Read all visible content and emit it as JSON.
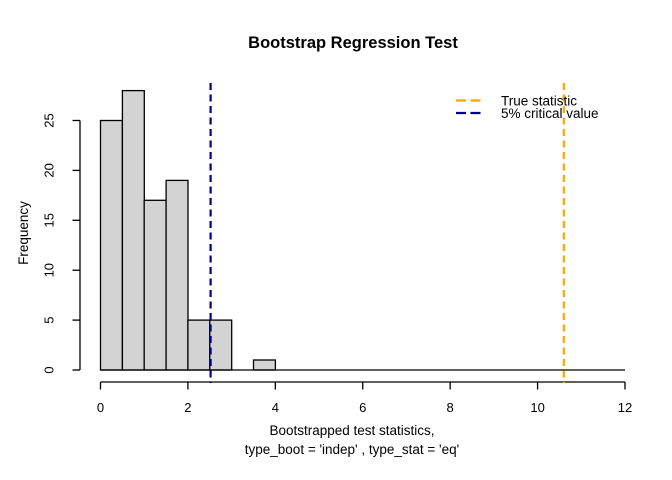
{
  "figure": {
    "background": "#ffffff",
    "text_color": "#000000"
  },
  "chart_data": {
    "type": "bar",
    "subtype": "histogram",
    "title": "Bootstrap Regression Test",
    "xlabel_line1": "Bootstrapped test statistics,",
    "xlabel_line2": "type_boot = 'indep' , type_stat = 'eq'",
    "ylabel": "Frequency",
    "xlim": [
      0,
      12
    ],
    "ylim": [
      0,
      28
    ],
    "x_ticks": [
      0,
      2,
      4,
      6,
      8,
      10,
      12
    ],
    "y_ticks": [
      0,
      5,
      10,
      15,
      20,
      25
    ],
    "grid": false,
    "bin_width": 0.5,
    "bin_edges": [
      0,
      0.5,
      1,
      1.5,
      2,
      2.5,
      3,
      3.5,
      4
    ],
    "counts": [
      25,
      28,
      17,
      19,
      5,
      5,
      0,
      1
    ],
    "bar_fill": "#d3d3d3",
    "bar_stroke": "#000000",
    "vlines": [
      {
        "id": "true-statistic",
        "x": 10.6,
        "color": "#ffa500",
        "style": "dashed",
        "label": "True statistic"
      },
      {
        "id": "critical-value-5pct",
        "x": 2.52,
        "color": "#00008b",
        "style": "dashed",
        "label": "5% critical value"
      }
    ],
    "legend": {
      "position": "top-right",
      "border": false,
      "entries": [
        {
          "label": "True statistic",
          "color": "#ffa500",
          "line_style": "dashed"
        },
        {
          "label": "5% critical value",
          "color": "#00008b",
          "line_style": "dashed"
        }
      ]
    }
  }
}
